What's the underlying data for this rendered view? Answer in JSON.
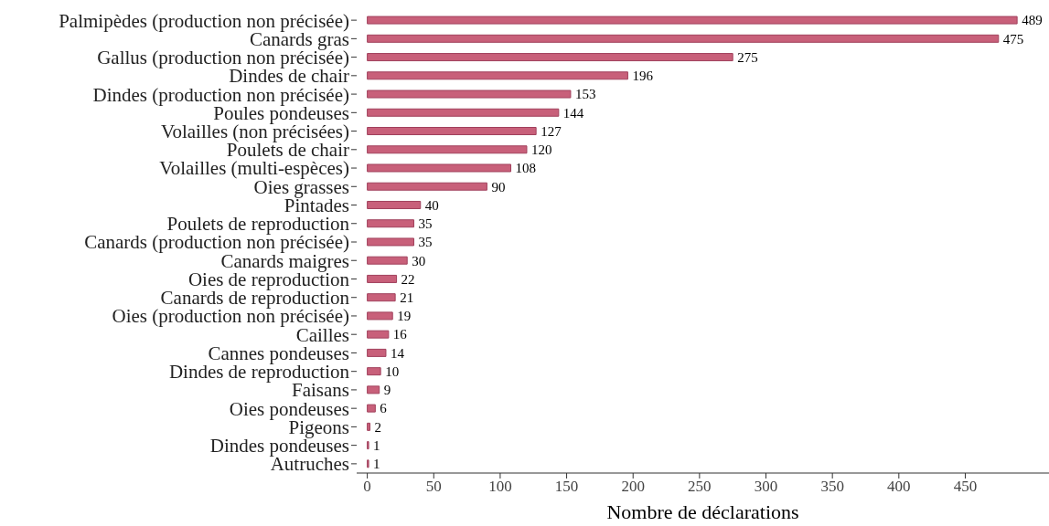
{
  "chart_data": {
    "type": "bar",
    "orientation": "horizontal",
    "xlabel": "Nombre de déclarations",
    "categories": [
      "Palmipèdes (production non précisée)",
      "Canards gras",
      "Gallus (production non précisée)",
      "Dindes de chair",
      "Dindes (production non précisée)",
      "Poules pondeuses",
      "Volailles (non précisées)",
      "Poulets de chair",
      "Volailles (multi-espèces)",
      "Oies grasses",
      "Pintades",
      "Poulets de reproduction",
      "Canards (production non précisée)",
      "Canards maigres",
      "Oies de reproduction",
      "Canards de reproduction",
      "Oies (production non précisée)",
      "Cailles",
      "Cannes pondeuses",
      "Dindes de reproduction",
      "Faisans",
      "Oies pondeuses",
      "Pigeons",
      "Dindes pondeuses",
      "Autruches"
    ],
    "values": [
      489,
      475,
      275,
      196,
      153,
      144,
      127,
      120,
      108,
      90,
      40,
      35,
      35,
      30,
      22,
      21,
      19,
      16,
      14,
      10,
      9,
      6,
      2,
      1,
      1
    ],
    "color": "#c8607a",
    "xlim": [
      -8,
      513
    ],
    "xticks": [
      0,
      50,
      100,
      150,
      200,
      250,
      300,
      350,
      400,
      450
    ],
    "data_labels": true,
    "grid": false,
    "legend": false
  }
}
